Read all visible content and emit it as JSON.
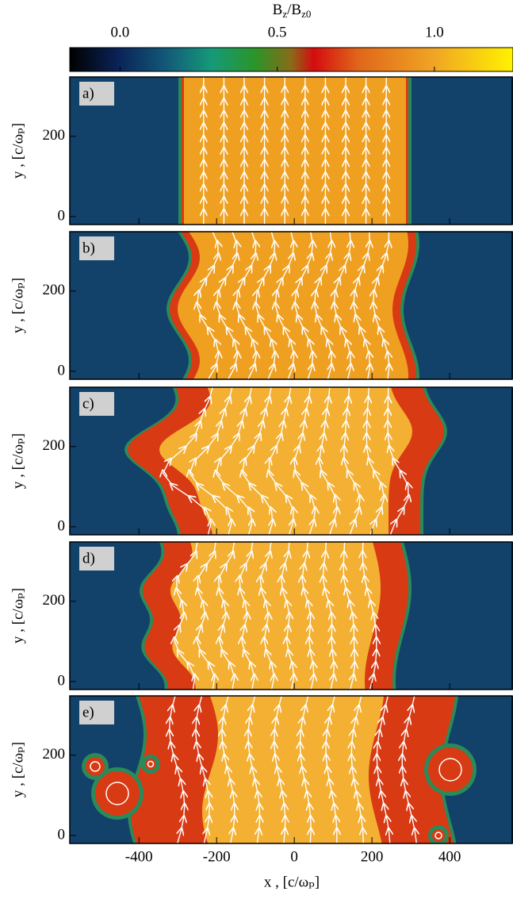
{
  "chart_data": {
    "type": "heatmap",
    "colorbar": {
      "label": [
        "B",
        "z",
        "/B",
        "z0"
      ],
      "lim": [
        -0.16,
        1.25
      ],
      "ticks": [
        {
          "value": 0,
          "label": "0.0"
        },
        {
          "value": 0.5,
          "label": "0.5"
        },
        {
          "value": 1,
          "label": "1.0"
        }
      ]
    },
    "panels": [
      {
        "label": "a)"
      },
      {
        "label": "b)"
      },
      {
        "label": "c)"
      },
      {
        "label": "d)"
      },
      {
        "label": "e)"
      }
    ],
    "xlabel": "x , [c/ωₚ]",
    "ylabel": "y , [c/ωₚ]",
    "xlim": [
      -578,
      563
    ],
    "xticks": [
      -400,
      -200,
      0,
      200,
      400
    ],
    "ylim": [
      -20,
      348
    ],
    "yticks": [
      0,
      200
    ]
  }
}
